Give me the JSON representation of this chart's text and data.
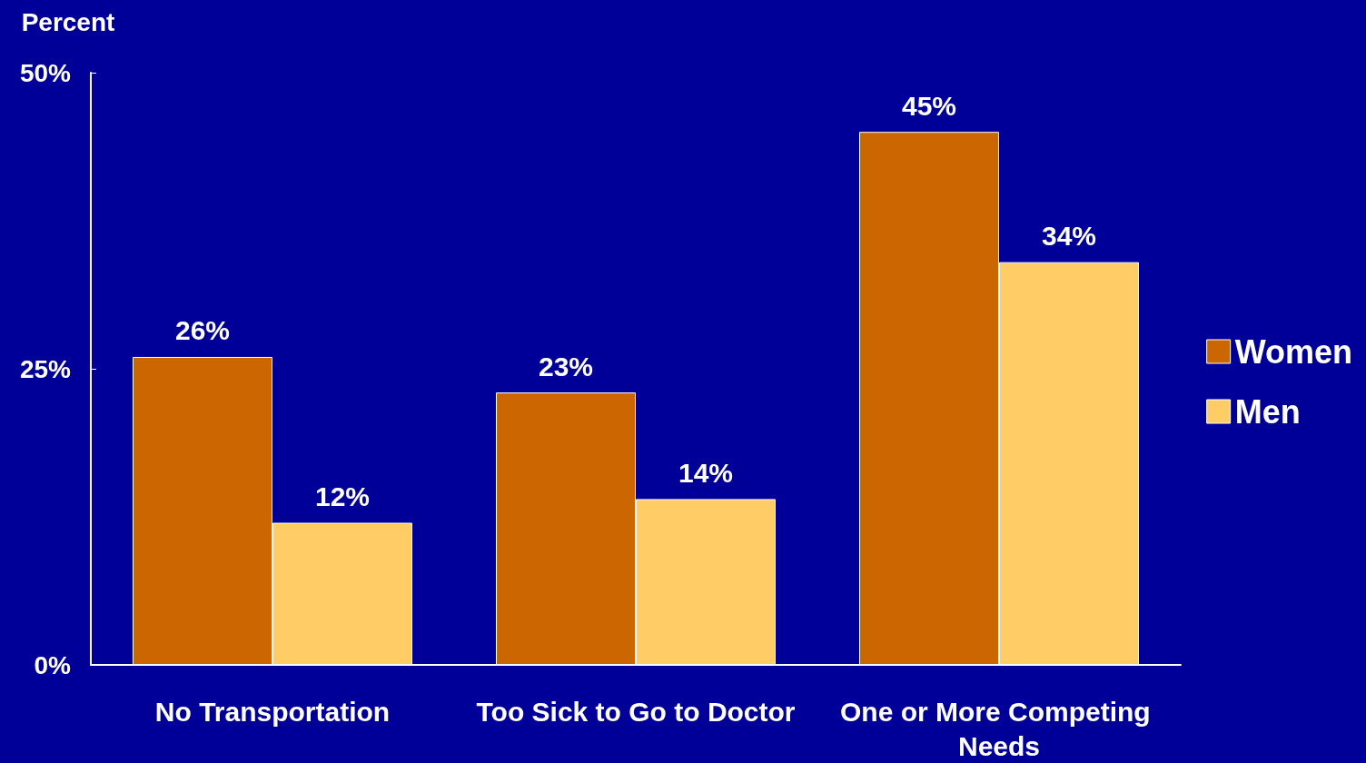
{
  "chart_data": {
    "type": "bar",
    "ylabel": "Percent",
    "categories": [
      "No Transportation",
      "Too Sick to Go to Doctor",
      "One or More Competing Needs"
    ],
    "series": [
      {
        "name": "Women",
        "color": "#cc6600",
        "values": [
          26,
          23,
          45
        ],
        "value_labels": [
          "26%",
          "23%",
          "45%"
        ]
      },
      {
        "name": "Men",
        "color": "#ffcc66",
        "values": [
          12,
          14,
          34
        ],
        "value_labels": [
          "12%",
          "14%",
          "34%"
        ]
      }
    ],
    "ylim": [
      0,
      50
    ],
    "yticks": [
      {
        "value": 0,
        "label": "0%"
      },
      {
        "value": 25,
        "label": "25%"
      },
      {
        "value": 50,
        "label": "50%"
      }
    ],
    "grid": false,
    "legend": "right"
  }
}
